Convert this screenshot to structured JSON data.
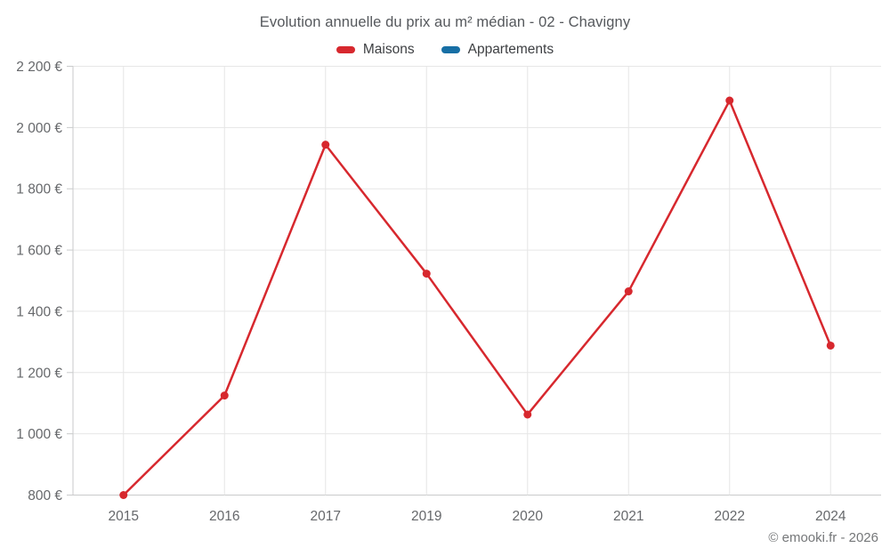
{
  "title": "Evolution annuelle du prix au m² médian - 02 - Chavigny",
  "footer": "© emooki.fr - 2026",
  "legend": [
    {
      "label": "Maisons",
      "color": "#d7282e"
    },
    {
      "label": "Appartements",
      "color": "#176fa5"
    }
  ],
  "chart_data": {
    "type": "line",
    "title": "Evolution annuelle du prix au m² médian - 02 - Chavigny",
    "categories": [
      "2015",
      "2016",
      "2017",
      "2019",
      "2020",
      "2021",
      "2022",
      "2024"
    ],
    "series": [
      {
        "name": "Maisons",
        "color": "#d7282e",
        "values": [
          800,
          1125,
          1944,
          1523,
          1063,
          1465,
          2088,
          1288
        ]
      },
      {
        "name": "Appartements",
        "color": "#176fa5",
        "values": []
      }
    ],
    "xlabel": "",
    "ylabel": "",
    "ylim": [
      800,
      2200
    ],
    "ytick_step": 200,
    "ytick_labels": [
      "800 €",
      "1 000 €",
      "1 200 €",
      "1 400 €",
      "1 600 €",
      "1 800 €",
      "2 000 €",
      "2 200 €"
    ],
    "grid": true,
    "legend_position": "top",
    "value_suffix": " €"
  }
}
